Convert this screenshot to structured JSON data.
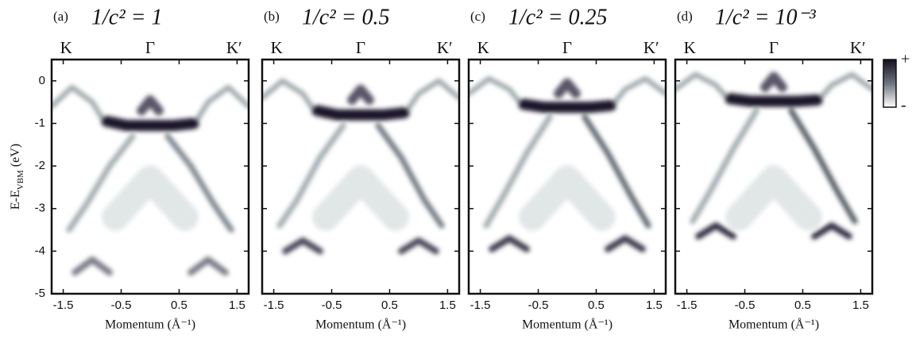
{
  "chart_data": [
    {
      "type": "line",
      "panel_label": "(a)",
      "title": "1/c² = 1",
      "xlabel": "Momentum (Å⁻¹)",
      "ylabel": {
        "main": "E-E",
        "sub": "VBM",
        "unit": "(eV)"
      },
      "xlim": [
        -1.7,
        1.7
      ],
      "ylim": [
        -5,
        0.5
      ],
      "xticks": [
        -1.5,
        -0.5,
        0.5,
        1.5
      ],
      "yticks": [
        0,
        -1,
        -2,
        -3,
        -4,
        -5
      ],
      "show_ytick_labels": true,
      "x2ticks": [
        {
          "value": -1.45,
          "label": "K"
        },
        {
          "value": 0,
          "label": "Γ"
        },
        {
          "value": 1.45,
          "label": "K′"
        }
      ],
      "series": [
        {
          "color": "#e1e6e7",
          "width": 34,
          "x": [
            -0.6,
            0,
            0.6
          ],
          "values": [
            -3.2,
            -2.3,
            -3.2
          ]
        },
        {
          "color": "#9aa4a8",
          "width": 6,
          "x": [
            -1.7,
            -1.35,
            -1.0,
            -0.75
          ],
          "values": [
            -0.6,
            -0.15,
            -0.5,
            -1.05
          ]
        },
        {
          "color": "#9aa4a8",
          "width": 6,
          "x": [
            1.7,
            1.35,
            1.0,
            0.75
          ],
          "values": [
            -0.6,
            -0.15,
            -0.5,
            -1.05
          ]
        },
        {
          "color": "#a0aaae",
          "width": 7,
          "x": [
            -0.3,
            -0.7,
            -1.1,
            -1.4
          ],
          "values": [
            -1.3,
            -2.0,
            -2.9,
            -3.5
          ]
        },
        {
          "color": "#7c858c",
          "width": 7,
          "x": [
            0.3,
            0.7,
            1.1,
            1.4
          ],
          "values": [
            -1.3,
            -2.0,
            -2.9,
            -3.5
          ]
        },
        {
          "color": "#7a7a88",
          "width": 8,
          "x": [
            -1.3,
            -1.0,
            -0.7
          ],
          "values": [
            -4.5,
            -4.2,
            -4.5
          ]
        },
        {
          "color": "#7a7a88",
          "width": 8,
          "x": [
            1.3,
            1.0,
            0.7
          ],
          "values": [
            -4.5,
            -4.2,
            -4.5
          ]
        },
        {
          "color": "#5a5468",
          "width": 12,
          "x": [
            -0.15,
            0,
            0.15
          ],
          "values": [
            -0.7,
            -0.45,
            -0.7
          ]
        },
        {
          "color": "#1c1729",
          "width": 14,
          "x": [
            -0.75,
            -0.4,
            0,
            0.4,
            0.75
          ],
          "values": [
            -0.95,
            -1.05,
            -1.05,
            -1.05,
            -1.0
          ]
        }
      ]
    },
    {
      "type": "line",
      "panel_label": "(b)",
      "title": "1/c² = 0.5",
      "xlabel": "Momentum (Å⁻¹)",
      "xlim": [
        -1.7,
        1.7
      ],
      "ylim": [
        -5,
        0.5
      ],
      "xticks": [
        -1.5,
        -0.5,
        0.5,
        1.5
      ],
      "yticks": [
        0,
        -1,
        -2,
        -3,
        -4,
        -5
      ],
      "show_ytick_labels": false,
      "x2ticks": [
        {
          "value": -1.45,
          "label": "K"
        },
        {
          "value": 0,
          "label": "Γ"
        },
        {
          "value": 1.45,
          "label": "K′"
        }
      ],
      "series": [
        {
          "color": "#e1e6e7",
          "width": 34,
          "x": [
            -0.6,
            0,
            0.6
          ],
          "values": [
            -3.2,
            -2.3,
            -3.2
          ]
        },
        {
          "color": "#9aa4a8",
          "width": 6,
          "x": [
            -1.7,
            -1.35,
            -1.0,
            -0.75
          ],
          "values": [
            -0.4,
            0.0,
            -0.3,
            -0.8
          ]
        },
        {
          "color": "#9aa4a8",
          "width": 6,
          "x": [
            1.7,
            1.35,
            1.0,
            0.75
          ],
          "values": [
            -0.4,
            0.0,
            -0.3,
            -0.8
          ]
        },
        {
          "color": "#a0aaae",
          "width": 7,
          "x": [
            -0.3,
            -0.7,
            -1.1,
            -1.4
          ],
          "values": [
            -1.05,
            -1.8,
            -2.8,
            -3.4
          ]
        },
        {
          "color": "#6f7880",
          "width": 7,
          "x": [
            0.3,
            0.7,
            1.1,
            1.4
          ],
          "values": [
            -1.05,
            -1.8,
            -2.8,
            -3.4
          ]
        },
        {
          "color": "#4a4658",
          "width": 8,
          "x": [
            -1.3,
            -1.0,
            -0.7
          ],
          "values": [
            -4.0,
            -3.75,
            -4.0
          ]
        },
        {
          "color": "#4a4658",
          "width": 8,
          "x": [
            1.3,
            1.0,
            0.7
          ],
          "values": [
            -4.0,
            -3.75,
            -4.0
          ]
        },
        {
          "color": "#5a5468",
          "width": 12,
          "x": [
            -0.15,
            0,
            0.15
          ],
          "values": [
            -0.45,
            -0.2,
            -0.45
          ]
        },
        {
          "color": "#1c1729",
          "width": 14,
          "x": [
            -0.75,
            -0.4,
            0,
            0.4,
            0.75
          ],
          "values": [
            -0.7,
            -0.8,
            -0.8,
            -0.8,
            -0.75
          ]
        }
      ]
    },
    {
      "type": "line",
      "panel_label": "(c)",
      "title": "1/c² = 0.25",
      "xlabel": "Momentum (Å⁻¹)",
      "xlim": [
        -1.7,
        1.7
      ],
      "ylim": [
        -5,
        0.5
      ],
      "xticks": [
        -1.5,
        -0.5,
        0.5,
        1.5
      ],
      "yticks": [
        0,
        -1,
        -2,
        -3,
        -4,
        -5
      ],
      "show_ytick_labels": false,
      "x2ticks": [
        {
          "value": -1.45,
          "label": "K"
        },
        {
          "value": 0,
          "label": "Γ"
        },
        {
          "value": 1.45,
          "label": "K′"
        }
      ],
      "series": [
        {
          "color": "#e1e6e7",
          "width": 34,
          "x": [
            -0.6,
            0,
            0.6
          ],
          "values": [
            -3.2,
            -2.3,
            -3.2
          ]
        },
        {
          "color": "#9aa4a8",
          "width": 6,
          "x": [
            -1.7,
            -1.35,
            -1.0,
            -0.75
          ],
          "values": [
            -0.3,
            0.05,
            -0.2,
            -0.62
          ]
        },
        {
          "color": "#9aa4a8",
          "width": 6,
          "x": [
            1.7,
            1.35,
            1.0,
            0.75
          ],
          "values": [
            -0.3,
            0.05,
            -0.2,
            -0.62
          ]
        },
        {
          "color": "#a0aaae",
          "width": 7,
          "x": [
            -0.3,
            -0.7,
            -1.1,
            -1.4
          ],
          "values": [
            -0.85,
            -1.7,
            -2.7,
            -3.4
          ]
        },
        {
          "color": "#5f6870",
          "width": 7,
          "x": [
            0.3,
            0.7,
            1.1,
            1.4
          ],
          "values": [
            -0.85,
            -1.7,
            -2.7,
            -3.4
          ]
        },
        {
          "color": "#3e3a4c",
          "width": 8,
          "x": [
            -1.3,
            -1.0,
            -0.7
          ],
          "values": [
            -3.95,
            -3.7,
            -3.95
          ]
        },
        {
          "color": "#3e3a4c",
          "width": 8,
          "x": [
            1.3,
            1.0,
            0.7
          ],
          "values": [
            -3.95,
            -3.7,
            -3.95
          ]
        },
        {
          "color": "#5a5468",
          "width": 12,
          "x": [
            -0.15,
            0,
            0.15
          ],
          "values": [
            -0.3,
            -0.05,
            -0.3
          ]
        },
        {
          "color": "#1c1729",
          "width": 14,
          "x": [
            -0.75,
            -0.4,
            0,
            0.4,
            0.75
          ],
          "values": [
            -0.55,
            -0.62,
            -0.62,
            -0.62,
            -0.58
          ]
        }
      ]
    },
    {
      "type": "line",
      "panel_label": "(d)",
      "title": "1/c² = 10⁻³",
      "xlabel": "Momentum (Å⁻¹)",
      "xlim": [
        -1.7,
        1.7
      ],
      "ylim": [
        -5,
        0.5
      ],
      "xticks": [
        -1.5,
        -0.5,
        0.5,
        1.5
      ],
      "yticks": [
        0,
        -1,
        -2,
        -3,
        -4,
        -5
      ],
      "show_ytick_labels": false,
      "x2ticks": [
        {
          "value": -1.45,
          "label": "K"
        },
        {
          "value": 0,
          "label": "Γ"
        },
        {
          "value": 1.45,
          "label": "K′"
        }
      ],
      "series": [
        {
          "color": "#e1e6e7",
          "width": 34,
          "x": [
            -0.6,
            0,
            0.6
          ],
          "values": [
            -3.2,
            -2.3,
            -3.2
          ]
        },
        {
          "color": "#9aa4a8",
          "width": 6,
          "x": [
            -1.7,
            -1.35,
            -1.0,
            -0.75
          ],
          "values": [
            -0.2,
            0.15,
            -0.1,
            -0.48
          ]
        },
        {
          "color": "#9aa4a8",
          "width": 6,
          "x": [
            1.7,
            1.35,
            1.0,
            0.75
          ],
          "values": [
            -0.2,
            0.15,
            -0.1,
            -0.48
          ]
        },
        {
          "color": "#a0aaae",
          "width": 7,
          "x": [
            -0.3,
            -0.7,
            -1.1,
            -1.4
          ],
          "values": [
            -0.7,
            -1.6,
            -2.6,
            -3.3
          ]
        },
        {
          "color": "#535c64",
          "width": 7,
          "x": [
            0.3,
            0.7,
            1.1,
            1.4
          ],
          "values": [
            -0.7,
            -1.6,
            -2.6,
            -3.3
          ]
        },
        {
          "color": "#332f42",
          "width": 8,
          "x": [
            -1.3,
            -1.0,
            -0.7
          ],
          "values": [
            -3.65,
            -3.4,
            -3.65
          ]
        },
        {
          "color": "#332f42",
          "width": 8,
          "x": [
            1.3,
            1.0,
            0.7
          ],
          "values": [
            -3.65,
            -3.4,
            -3.65
          ]
        },
        {
          "color": "#5a5468",
          "width": 12,
          "x": [
            -0.15,
            0,
            0.15
          ],
          "values": [
            -0.15,
            0.1,
            -0.15
          ]
        },
        {
          "color": "#1c1729",
          "width": 14,
          "x": [
            -0.75,
            -0.4,
            0,
            0.4,
            0.75
          ],
          "values": [
            -0.42,
            -0.48,
            -0.48,
            -0.48,
            -0.45
          ]
        }
      ]
    }
  ],
  "colorbar": {
    "max_label": "+",
    "min_label": "-"
  }
}
